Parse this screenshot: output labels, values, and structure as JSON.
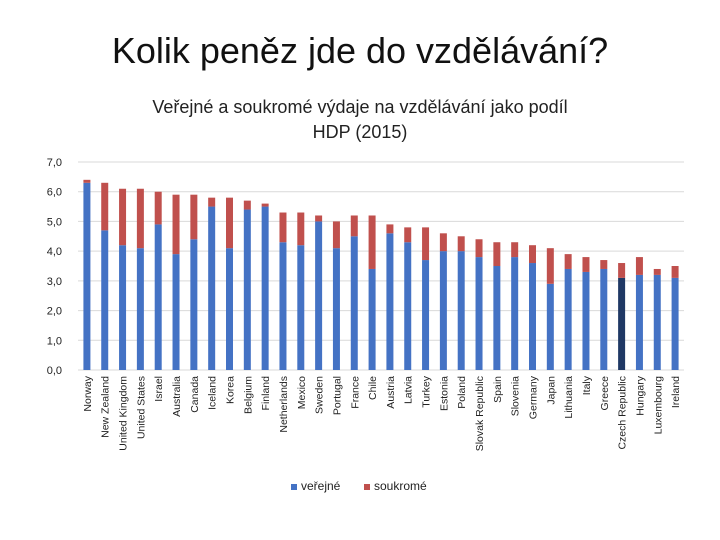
{
  "slide": {
    "title": "Kolik peněz jde do vzdělávání?",
    "subtitle_line1": "Veřejné a soukromé výdaje na vzdělávání jako podíl",
    "subtitle_line2": "HDP (2015)"
  },
  "chart_data": {
    "type": "bar",
    "stacked": true,
    "title": "",
    "xlabel": "",
    "ylabel": "",
    "ylim": [
      0,
      7
    ],
    "yticks": [
      "0,0",
      "1,0",
      "2,0",
      "3,0",
      "4,0",
      "5,0",
      "6,0",
      "7,0"
    ],
    "grid": true,
    "legend_position": "bottom",
    "highlight_category": "Czech Republic",
    "colors": {
      "public": "#4472c4",
      "private": "#c0504d",
      "highlight": "#1f3864",
      "grid": "#d9d9d9"
    },
    "categories": [
      "Norway",
      "New Zealand",
      "United Kingdom",
      "United States",
      "Israel",
      "Australia",
      "Canada",
      "Iceland",
      "Korea",
      "Belgium",
      "Finland",
      "Netherlands",
      "Mexico",
      "Sweden",
      "Portugal",
      "France",
      "Chile",
      "Austria",
      "Latvia",
      "Turkey",
      "Estonia",
      "Poland",
      "Slovak Republic",
      "Spain",
      "Slovenia",
      "Germany",
      "Japan",
      "Lithuania",
      "Italy",
      "Greece",
      "Czech Republic",
      "Hungary",
      "Luxembourg",
      "Ireland"
    ],
    "series": [
      {
        "name": "veřejné",
        "values": [
          6.3,
          4.7,
          4.2,
          4.1,
          4.9,
          3.9,
          4.4,
          5.5,
          4.1,
          5.4,
          5.5,
          4.3,
          4.2,
          5.0,
          4.1,
          4.5,
          3.4,
          4.6,
          4.3,
          3.7,
          4.0,
          4.0,
          3.8,
          3.5,
          3.8,
          3.6,
          2.9,
          3.4,
          3.3,
          3.4,
          3.1,
          3.2,
          3.2,
          3.1
        ]
      },
      {
        "name": "soukromé",
        "values": [
          0.1,
          1.6,
          1.9,
          2.0,
          1.1,
          2.0,
          1.5,
          0.3,
          1.7,
          0.3,
          0.1,
          1.0,
          1.1,
          0.2,
          0.9,
          0.7,
          1.8,
          0.3,
          0.5,
          1.1,
          0.6,
          0.5,
          0.6,
          0.8,
          0.5,
          0.6,
          1.2,
          0.5,
          0.5,
          0.3,
          0.5,
          0.6,
          0.2,
          0.4
        ]
      }
    ]
  }
}
